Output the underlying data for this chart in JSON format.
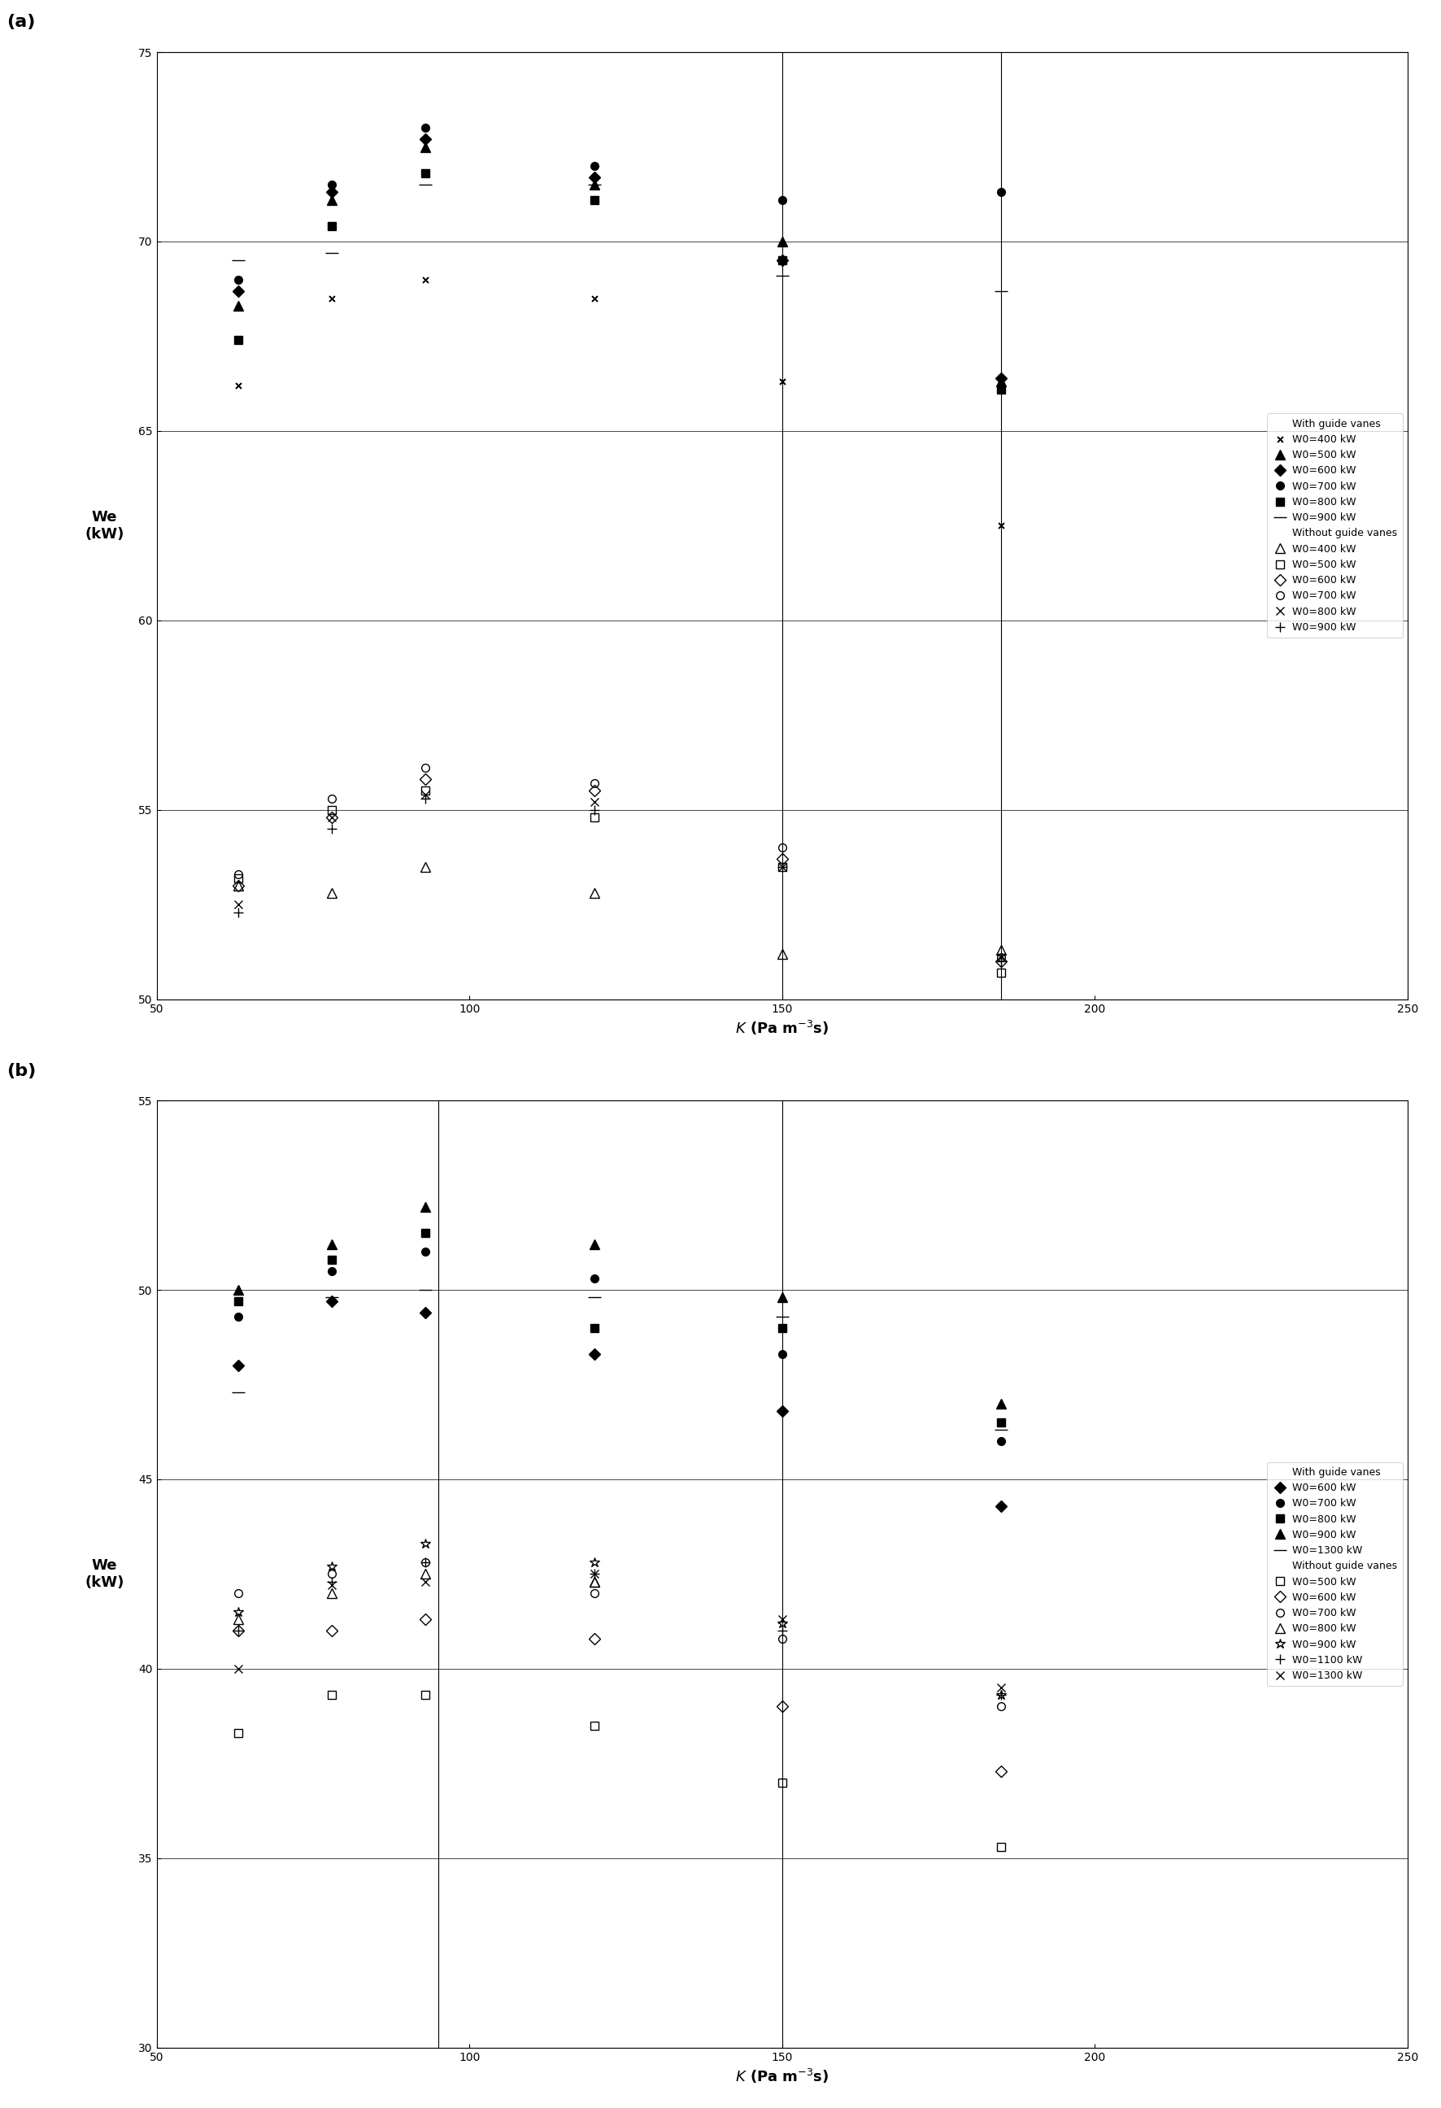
{
  "panel_a": {
    "xlim": [
      50,
      250
    ],
    "ylim": [
      50,
      75
    ],
    "xticks": [
      50,
      100,
      150,
      200,
      250
    ],
    "yticks": [
      50,
      55,
      60,
      65,
      70,
      75
    ],
    "xlabel": "K (Pa m⁻³s)",
    "ylabel": "We\n(kW)",
    "vlines": [
      150,
      185
    ],
    "with_guide_vanes": {
      "W0_400": {
        "x": [
          63,
          78,
          93,
          120,
          150,
          185
        ],
        "y": [
          66.2,
          68.5,
          69.0,
          68.5,
          66.3,
          62.5
        ],
        "marker": "x",
        "ms": 7,
        "label": "W0=400 kW",
        "style": "cross_double"
      },
      "W0_500": {
        "x": [
          63,
          78,
          93,
          120,
          150,
          185
        ],
        "y": [
          68.3,
          71.1,
          72.5,
          71.5,
          70.0,
          66.3
        ],
        "marker": "^",
        "ms": 8,
        "label": "W0=500 kW",
        "filled": true
      },
      "W0_600": {
        "x": [
          63,
          78,
          93,
          120,
          150,
          185
        ],
        "y": [
          68.7,
          71.3,
          72.7,
          71.7,
          69.5,
          66.4
        ],
        "marker": "D",
        "ms": 7,
        "label": "W0=600 kW",
        "filled": true
      },
      "W0_700": {
        "x": [
          63,
          78,
          93,
          120,
          150,
          185
        ],
        "y": [
          69.0,
          71.5,
          73.0,
          72.0,
          71.1,
          71.3
        ],
        "marker": "o",
        "ms": 7,
        "label": "W0=700 kW",
        "filled": true
      },
      "W0_800": {
        "x": [
          63,
          78,
          93,
          120,
          150,
          185
        ],
        "y": [
          67.4,
          70.4,
          71.8,
          71.1,
          69.5,
          66.1
        ],
        "marker": "s",
        "ms": 7,
        "label": "W0=800 kW",
        "filled": true
      },
      "W0_900": {
        "x": [
          63,
          78,
          93,
          120,
          150,
          185
        ],
        "y": [
          69.5,
          69.7,
          71.5,
          71.5,
          69.1,
          68.7
        ],
        "marker": "_",
        "ms": 10,
        "label": "W0=900 kW",
        "filled": true
      }
    },
    "without_guide_vanes": {
      "W0_400": {
        "x": [
          63,
          78,
          93,
          120,
          150,
          185
        ],
        "y": [
          53.0,
          52.8,
          53.5,
          52.8,
          51.2,
          51.3
        ],
        "marker": "^",
        "ms": 8,
        "label": "W0=400 kW",
        "filled": false
      },
      "W0_500": {
        "x": [
          63,
          78,
          93,
          120,
          150,
          185
        ],
        "y": [
          53.2,
          55.0,
          55.5,
          54.8,
          53.5,
          50.7
        ],
        "marker": "s",
        "ms": 7,
        "label": "W0=500 kW",
        "filled": false
      },
      "W0_600": {
        "x": [
          63,
          78,
          93,
          120,
          150,
          185
        ],
        "y": [
          53.0,
          54.8,
          55.8,
          55.5,
          53.7,
          51.0
        ],
        "marker": "D",
        "ms": 7,
        "label": "W0=600 kW",
        "filled": false
      },
      "W0_700": {
        "x": [
          63,
          78,
          93,
          120,
          150,
          185
        ],
        "y": [
          53.3,
          55.3,
          56.1,
          55.7,
          54.0,
          51.1
        ],
        "marker": "o",
        "ms": 7,
        "label": "W0=700 kW",
        "filled": false
      },
      "W0_800": {
        "x": [
          63,
          78,
          93,
          120,
          150,
          185
        ],
        "y": [
          52.5,
          54.8,
          55.4,
          55.2,
          53.5,
          51.1
        ],
        "marker": "x",
        "ms": 7,
        "label": "W0=800 kW",
        "filled": false
      },
      "W0_900": {
        "x": [
          63,
          78,
          93,
          120,
          150,
          185
        ],
        "y": [
          52.3,
          54.5,
          55.3,
          55.0,
          53.5,
          51.0
        ],
        "marker": "+",
        "ms": 8,
        "label": "W0=900 kW",
        "filled": false
      }
    }
  },
  "panel_b": {
    "xlim": [
      50,
      250
    ],
    "ylim": [
      30,
      55
    ],
    "xticks": [
      50,
      100,
      150,
      200,
      250
    ],
    "yticks": [
      30,
      35,
      40,
      45,
      50,
      55
    ],
    "xlabel": "K (Pa m⁻³s)",
    "ylabel": "We\n(kW)",
    "vlines": [
      95,
      150
    ],
    "with_guide_vanes": {
      "W0_600": {
        "x": [
          63,
          78,
          93,
          120,
          150,
          185
        ],
        "y": [
          48.0,
          49.7,
          49.4,
          48.3,
          46.8,
          44.3
        ],
        "marker": "D",
        "ms": 7,
        "label": "W0=600 kW",
        "filled": true
      },
      "W0_700": {
        "x": [
          63,
          78,
          93,
          120,
          150,
          185
        ],
        "y": [
          49.3,
          50.5,
          51.0,
          50.3,
          48.3,
          46.0
        ],
        "marker": "o",
        "ms": 7,
        "label": "W0=700 kW",
        "filled": true
      },
      "W0_800": {
        "x": [
          63,
          78,
          93,
          120,
          150,
          185
        ],
        "y": [
          49.7,
          50.8,
          51.5,
          49.0,
          49.0,
          46.5
        ],
        "marker": "s",
        "ms": 7,
        "label": "W0=800 kW",
        "filled": true
      },
      "W0_900": {
        "x": [
          63,
          78,
          93,
          120,
          150,
          185
        ],
        "y": [
          50.0,
          51.2,
          52.2,
          51.2,
          49.8,
          47.0
        ],
        "marker": "^",
        "ms": 8,
        "label": "W0=900 kW",
        "filled": true
      },
      "W0_1300": {
        "x": [
          63,
          78,
          93,
          120,
          150,
          185
        ],
        "y": [
          47.3,
          49.8,
          50.0,
          49.8,
          49.3,
          46.3
        ],
        "marker": "_",
        "ms": 10,
        "label": "W0=1300 kW",
        "filled": true
      }
    },
    "without_guide_vanes": {
      "W0_500": {
        "x": [
          63,
          78,
          93,
          120,
          150,
          185
        ],
        "y": [
          38.3,
          39.3,
          39.3,
          38.5,
          37.0,
          35.3
        ],
        "marker": "s",
        "ms": 7,
        "label": "W0=500 kW",
        "filled": false
      },
      "W0_600": {
        "x": [
          63,
          78,
          93,
          120,
          150,
          185
        ],
        "y": [
          41.0,
          41.0,
          41.3,
          40.8,
          39.0,
          37.3
        ],
        "marker": "D",
        "ms": 7,
        "label": "W0=600 kW",
        "filled": false
      },
      "W0_700": {
        "x": [
          63,
          78,
          93,
          120,
          150,
          185
        ],
        "y": [
          42.0,
          42.5,
          42.8,
          42.0,
          40.8,
          39.0
        ],
        "marker": "o",
        "ms": 7,
        "label": "W0=700 kW",
        "filled": false
      },
      "W0_800": {
        "x": [
          63,
          78,
          93,
          120,
          120
        ],
        "y": [
          41.3,
          42.0,
          42.5,
          42.3,
          42.3
        ],
        "marker": "^",
        "ms": 8,
        "label": "W0=800 kW",
        "filled": false
      },
      "W0_900": {
        "x": [
          63,
          78,
          93,
          120,
          150,
          185
        ],
        "y": [
          41.5,
          42.7,
          43.3,
          42.8,
          41.2,
          39.3
        ],
        "marker": "*",
        "ms": 9,
        "label": "W0=900 kW",
        "filled": false
      },
      "W0_1100": {
        "x": [
          63,
          78,
          93,
          120,
          150,
          185
        ],
        "y": [
          41.0,
          42.3,
          42.8,
          42.5,
          41.0,
          39.3
        ],
        "marker": "+",
        "ms": 8,
        "label": "W0=1100 kW",
        "filled": false
      },
      "W0_1300": {
        "x": [
          63,
          78,
          93,
          120,
          150,
          185
        ],
        "y": [
          40.0,
          42.2,
          42.3,
          42.5,
          41.3,
          39.5
        ],
        "marker": "x",
        "ms": 7,
        "label": "W0=1300 kW",
        "filled": false
      }
    }
  }
}
